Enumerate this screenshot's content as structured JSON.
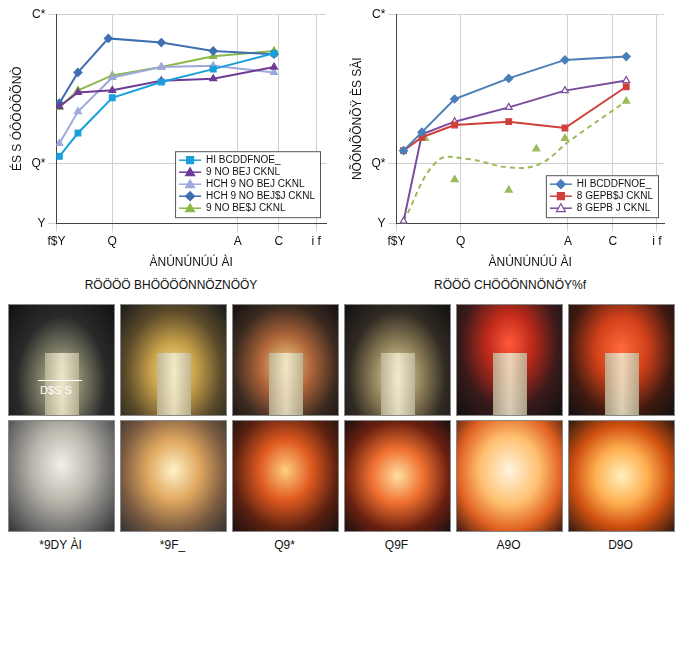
{
  "chart_data": [
    {
      "type": "line",
      "caption": "RÖÖÖÖ BHÖÖÖÖNNÖZNÖÖY",
      "x_label": "ÀNÚNÚNÚÚ ÀI",
      "y_label": "ÉS S ÓÔÖÒÕÕNÒ",
      "xlim": [
        0,
        275
      ],
      "xticks": [
        {
          "value": 0,
          "label": "f$Y"
        },
        {
          "value": 57,
          "label": "Q"
        },
        {
          "value": 185,
          "label": "A"
        },
        {
          "value": 227,
          "label": "C"
        },
        {
          "value": 265,
          "label": "i f"
        }
      ],
      "ylim": [
        0,
        70
      ],
      "yticks": [
        {
          "value": 0,
          "label": "Y"
        },
        {
          "value": 20,
          "label": "Q*"
        },
        {
          "value": 70,
          "label": "C*"
        }
      ],
      "grid": true,
      "legend": "lower right",
      "series": [
        {
          "name": "HI BCDDFNOE_",
          "color": "#19a0dc",
          "marker": "square",
          "line_style": "solid",
          "x": [
            3,
            22,
            57,
            107,
            160,
            222
          ],
          "values": [
            22.4,
            30.2,
            42.0,
            47.3,
            51.6,
            56.9
          ]
        },
        {
          "name": "9 NO BEJ CKNL",
          "color": "#6e3c96",
          "marker": "triangle",
          "line_style": "solid",
          "x": [
            3,
            22,
            57,
            107,
            160,
            222
          ],
          "values": [
            39.1,
            43.8,
            44.5,
            47.7,
            48.4,
            52.3
          ]
        },
        {
          "name": "HCH 9 NO BEJ CKNL",
          "color": "#9fa8dc",
          "marker": "triangle",
          "line_style": "solid",
          "x": [
            3,
            22,
            57,
            107,
            160,
            222
          ],
          "values": [
            26.7,
            37.4,
            48.8,
            52.3,
            52.7,
            50.5
          ]
        },
        {
          "name": "HCH 9 NO BEJ$J CKNL",
          "color": "#3e6fb0",
          "marker": "diamond",
          "line_style": "solid",
          "x": [
            3,
            22,
            53,
            107,
            160,
            222
          ],
          "values": [
            40.2,
            50.5,
            61.9,
            60.5,
            57.7,
            56.6
          ]
        },
        {
          "name": "9 NO BE$J CKNL",
          "color": "#8cb84a",
          "marker": "triangle",
          "line_style": "solid",
          "x": [
            3,
            22,
            57,
            107,
            160,
            222
          ],
          "values": [
            38.8,
            44.5,
            49.5,
            52.3,
            55.9,
            57.7
          ]
        }
      ]
    },
    {
      "type": "line",
      "caption": "RÖÖÖ CHÖÖÖNNÖNÖY%f",
      "x_label": "ÀNÚNÚNÚÚ ÀI",
      "y_label": "NÕÕNÕÕNÕŸ ÈS SÀI",
      "xlim": [
        0,
        262
      ],
      "xticks": [
        {
          "value": 0,
          "label": "f$Y"
        },
        {
          "value": 63,
          "label": "Q"
        },
        {
          "value": 168,
          "label": "A"
        },
        {
          "value": 212,
          "label": "C"
        },
        {
          "value": 255,
          "label": "i f"
        }
      ],
      "ylim": [
        0,
        70
      ],
      "yticks": [
        {
          "value": 0,
          "label": "Y"
        },
        {
          "value": 20,
          "label": "Q*"
        },
        {
          "value": 70,
          "label": "C*"
        }
      ],
      "grid": true,
      "legend": "lower right",
      "series": [
        {
          "name": "HI BCDDFNOE_",
          "color": "#4a7ebb",
          "marker": "diamond",
          "line_style": "solid",
          "x": [
            7,
            25,
            57,
            110,
            165,
            225
          ],
          "values": [
            24.3,
            30.5,
            41.6,
            48.5,
            54.7,
            55.8
          ]
        },
        {
          "name": "8 GEPB$J CKNL",
          "color": "#d0403a",
          "marker": "square",
          "line_style": "solid",
          "x": [
            7,
            25,
            57,
            110,
            165,
            225
          ],
          "values": [
            24.3,
            28.8,
            32.9,
            34.0,
            31.9,
            45.7
          ]
        },
        {
          "name": "8 GEPB J CKNL",
          "color": "#7b4c9c",
          "marker": "open_triangle",
          "line_style": "solid",
          "x": [
            7,
            25,
            57,
            110,
            165,
            225
          ],
          "values": [
            0.7,
            29.8,
            34.0,
            38.8,
            44.4,
            47.8
          ]
        },
        {
          "color": "#9bbb59",
          "marker": "triangle",
          "line_style": "none",
          "x": [
            7,
            28,
            57,
            110,
            137,
            165,
            225
          ],
          "values": [
            0.0,
            28.4,
            14.6,
            11.1,
            24.9,
            28.4,
            40.9
          ]
        },
        {
          "color": "#9bbb59",
          "marker": "none",
          "line_style": "dashed",
          "x": [
            7,
            40,
            70,
            110,
            140,
            170,
            225
          ],
          "values": [
            0.7,
            20.8,
            21.5,
            18.7,
            19.8,
            27.7,
            40.9
          ]
        }
      ]
    }
  ],
  "photos": {
    "scale_label": "D$S S",
    "labels": [
      "*9DY ÀI",
      "*9F_",
      "Q9*",
      "Q9F",
      "A9O",
      "D9O"
    ]
  }
}
